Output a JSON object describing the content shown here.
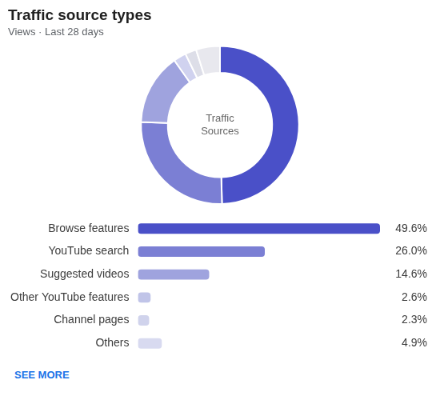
{
  "chart_data": [
    {
      "type": "doughnut",
      "title": "Traffic source types",
      "subtitle": "Views · Last 28 days",
      "values": [
        49.6,
        26.0,
        14.6,
        2.6,
        2.3,
        4.9
      ],
      "colors": [
        "#4a50c8",
        "#7b7fd4",
        "#9fa3de",
        "#d0d2ef",
        "#dddee8",
        "#e8e8ee"
      ],
      "annotations": [
        "Traffic\nSources"
      ]
    },
    {
      "type": "bar",
      "orientation": "horizontal",
      "categories": [
        "Browse features",
        "YouTube search",
        "Suggested videos",
        "Other YouTube features",
        "Channel pages",
        "Others"
      ],
      "values": [
        49.6,
        26.0,
        14.6,
        2.6,
        2.3,
        4.9
      ],
      "value_labels": [
        "49.6%",
        "26.0%",
        "14.6%",
        "2.6%",
        "2.3%",
        "4.9%"
      ],
      "colors": [
        "#4a50c8",
        "#7b7fd4",
        "#9fa3de",
        "#c0c4e8",
        "#d0d3ec",
        "#d8daf0"
      ],
      "xlim": [
        0,
        49.6
      ],
      "data_labels": true,
      "tick_labels": "y",
      "grid": false,
      "annotations": [
        "SEE MORE"
      ]
    }
  ]
}
